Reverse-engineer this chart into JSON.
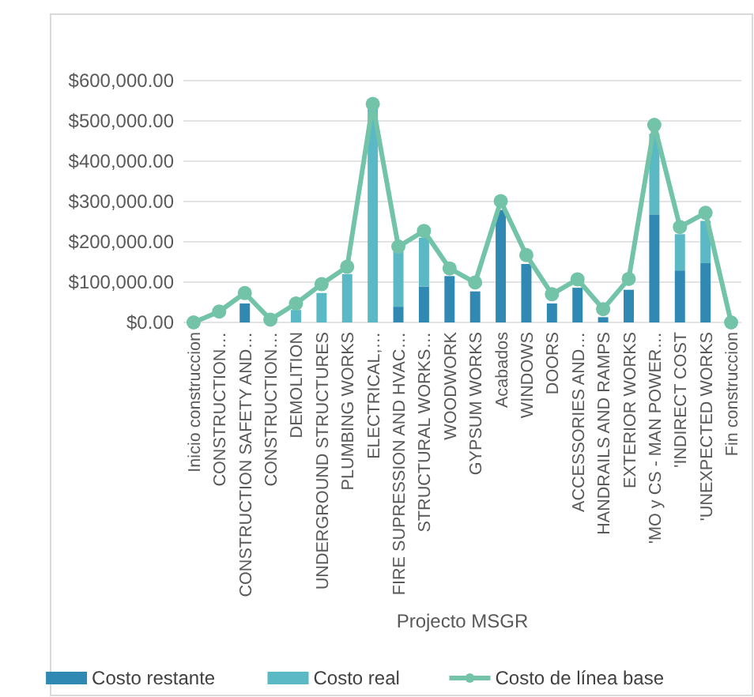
{
  "chart_data": {
    "type": "bar",
    "stacked": true,
    "xlabel": "Projecto MSGR",
    "categories": [
      "Inicio construccion",
      "CONSTRUCTION…",
      "CONSTRUCTION SAFETY AND…",
      "CONSTRUCTION…",
      "DEMOLITION",
      "UNDERGROUND STRUCTURES",
      "PLUMBING WORKS",
      "ELECTRICAL,…",
      "FIRE SUPRESSION AND HVAC…",
      "STRUCTURAL WORKS…",
      "WOODWORK",
      "GYPSUM WORKS",
      "Acabados",
      "WINDOWS",
      "DOORS",
      "ACCESSORIES AND…",
      "HANDRAILS AND RAMPS",
      "EXTERIOR WORKS",
      "'MO y CS - MAN POWER…",
      "'INDIRECT COST",
      "'UNEXPECTED WORKS",
      "Fin construccion"
    ],
    "series": [
      {
        "name": "Costo restante",
        "color": "#2f89b3",
        "values": [
          0,
          0,
          47000,
          0,
          0,
          0,
          0,
          0,
          39000,
          89000,
          115000,
          77000,
          279000,
          145000,
          47000,
          86000,
          13000,
          81000,
          268000,
          129000,
          147000,
          0
        ]
      },
      {
        "name": "Costo real",
        "color": "#5bb9c5",
        "values": [
          0,
          0,
          0,
          0,
          31000,
          73000,
          120000,
          530000,
          136000,
          121000,
          0,
          0,
          0,
          0,
          0,
          0,
          0,
          0,
          200000,
          90000,
          105000,
          0
        ]
      },
      {
        "name": "Costo de línea base",
        "type": "line",
        "color": "#72c3a8",
        "marker": "circle",
        "values": [
          0,
          27000,
          73000,
          7000,
          47000,
          95000,
          138000,
          542000,
          188000,
          227000,
          134000,
          99000,
          301000,
          167000,
          70000,
          107000,
          33000,
          108000,
          490000,
          237000,
          272000,
          0
        ]
      }
    ],
    "ylim": [
      0,
      600000
    ],
    "yticks": [
      {
        "value": 0,
        "label": "$0.00"
      },
      {
        "value": 100000,
        "label": "$100,000.00"
      },
      {
        "value": 200000,
        "label": "$200,000.00"
      },
      {
        "value": 300000,
        "label": "$300,000.00"
      },
      {
        "value": 400000,
        "label": "$400,000.00"
      },
      {
        "value": 500000,
        "label": "$500,000.00"
      },
      {
        "value": 600000,
        "label": "$600,000.00"
      }
    ],
    "grid": "y",
    "legend": "bottom"
  }
}
